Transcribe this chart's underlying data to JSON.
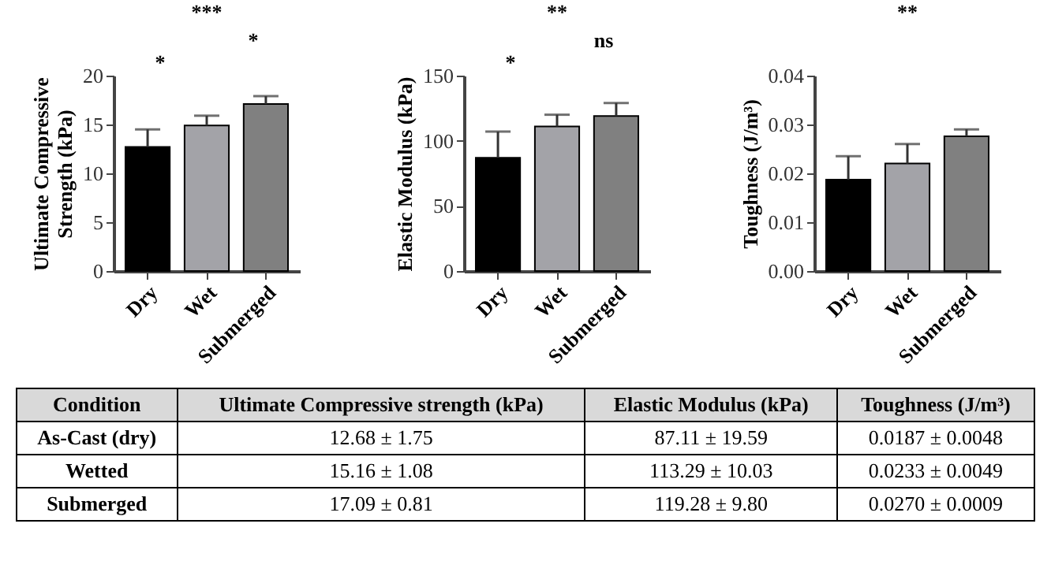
{
  "chart_data": [
    {
      "type": "bar",
      "ylabel": "Ultimate Compressive Strength (kPa)",
      "categories": [
        "Dry",
        "Wet",
        "Submerged"
      ],
      "values": [
        12.7,
        14.9,
        17.1
      ],
      "colors": [
        "#000000",
        "#a3a3a8",
        "#808080"
      ],
      "errors": [
        [
          12.7,
          14.5
        ],
        [
          14.9,
          15.9
        ],
        [
          17.1,
          17.9
        ]
      ],
      "ylim": [
        0,
        20
      ],
      "yticks": [
        0,
        5,
        10,
        15,
        20
      ],
      "annotations": [
        "***",
        "*",
        "*"
      ]
    },
    {
      "type": "bar",
      "ylabel": "Elastic Modulus (kPa)",
      "categories": [
        "Dry",
        "Wet",
        "Submerged"
      ],
      "values": [
        87,
        111,
        119
      ],
      "colors": [
        "#000000",
        "#a3a3a8",
        "#808080"
      ],
      "errors": [
        [
          87,
          107
        ],
        [
          111,
          120
        ],
        [
          119,
          129
        ]
      ],
      "ylim": [
        0,
        150
      ],
      "yticks": [
        0,
        50,
        100,
        150
      ],
      "annotations": [
        "**",
        "*",
        "ns"
      ]
    },
    {
      "type": "bar",
      "ylabel": "Toughness (J/m³)",
      "categories": [
        "Dry",
        "Wet",
        "Submerged"
      ],
      "values": [
        0.0187,
        0.022,
        0.0276
      ],
      "colors": [
        "#000000",
        "#a3a3a8",
        "#808080"
      ],
      "errors": [
        [
          0.0187,
          0.0235
        ],
        [
          0.022,
          0.026
        ],
        [
          0.0276,
          0.029
        ]
      ],
      "ylim": [
        0,
        0.04
      ],
      "yticks": [
        {
          "value": 0,
          "label": "0.00"
        },
        {
          "value": 0.01,
          "label": "0.01"
        },
        {
          "value": 0.02,
          "label": "0.02"
        },
        {
          "value": 0.03,
          "label": "0.03"
        },
        {
          "value": 0.04,
          "label": "0.04"
        }
      ],
      "annotations": [
        "**"
      ]
    },
    {
      "type": "other",
      "categories": [
        "Condition",
        "Ultimate Compressive strength (kPa)",
        "Elastic Modulus (kPa)",
        "Toughness (J/m³)"
      ],
      "annotations": [
        "As-Cast (dry)",
        "12.68 ± 1.75",
        "87.11 ± 19.59",
        "0.0187 ± 0.0048",
        "Wetted",
        "15.16 ± 1.08",
        "113.29 ± 10.03",
        "0.0233 ± 0.0049",
        "Submerged",
        "17.09 ± 0.81",
        "119.28 ± 9.80",
        "0.0270 ± 0.0009"
      ]
    }
  ]
}
